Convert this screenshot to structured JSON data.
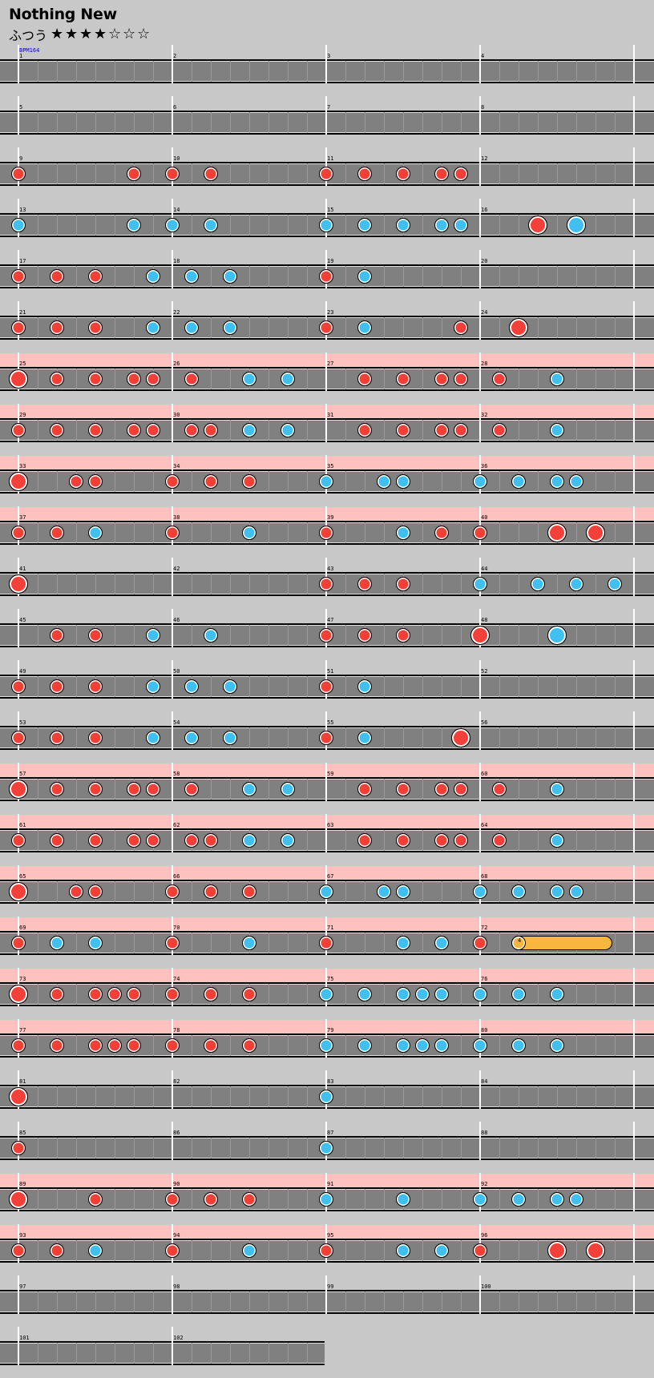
{
  "song": {
    "title": "Nothing New",
    "difficulty": "ふつう",
    "stars_filled": 4,
    "stars_total": 7,
    "star_filled_glyph": "★",
    "star_empty_glyph": "☆"
  },
  "bpm_label": "BPM164",
  "beats_per_measure": 8,
  "colors": {
    "background": "#c8c8c8",
    "lane": "#808080",
    "gogo": "#ffc0c0",
    "don": "#f5403a",
    "ka": "#40c0f0",
    "roll": "#f7b63d"
  },
  "rows": [
    {
      "measures": [
        1,
        2,
        3,
        4
      ],
      "gogo": false,
      "notes": []
    },
    {
      "measures": [
        5,
        6,
        7,
        8
      ],
      "gogo": false,
      "notes": []
    },
    {
      "measures": [
        9,
        10,
        11,
        12
      ],
      "gogo": false,
      "notes": [
        [
          0,
          "r",
          0
        ],
        [
          6,
          "r",
          0
        ],
        [
          8,
          "r",
          0
        ],
        [
          10,
          "r",
          0
        ],
        [
          16,
          "r",
          0
        ],
        [
          18,
          "r",
          0
        ],
        [
          20,
          "r",
          0
        ],
        [
          22,
          "r",
          0
        ],
        [
          23,
          "r",
          0
        ]
      ]
    },
    {
      "measures": [
        13,
        14,
        15,
        16
      ],
      "gogo": false,
      "notes": [
        [
          0,
          "b",
          0
        ],
        [
          6,
          "b",
          0
        ],
        [
          8,
          "b",
          0
        ],
        [
          10,
          "b",
          0
        ],
        [
          16,
          "b",
          0
        ],
        [
          18,
          "b",
          0
        ],
        [
          20,
          "b",
          0
        ],
        [
          22,
          "b",
          0
        ],
        [
          23,
          "b",
          0
        ],
        [
          27,
          "r",
          1
        ],
        [
          29,
          "b",
          1
        ]
      ]
    },
    {
      "measures": [
        17,
        18,
        19,
        20
      ],
      "gogo": false,
      "notes": [
        [
          0,
          "r",
          0
        ],
        [
          2,
          "r",
          0
        ],
        [
          4,
          "r",
          0
        ],
        [
          7,
          "b",
          0
        ],
        [
          9,
          "b",
          0
        ],
        [
          11,
          "b",
          0
        ],
        [
          16,
          "r",
          0
        ],
        [
          18,
          "b",
          0
        ]
      ]
    },
    {
      "measures": [
        21,
        22,
        23,
        24
      ],
      "gogo": false,
      "notes": [
        [
          0,
          "r",
          0
        ],
        [
          2,
          "r",
          0
        ],
        [
          4,
          "r",
          0
        ],
        [
          7,
          "b",
          0
        ],
        [
          9,
          "b",
          0
        ],
        [
          11,
          "b",
          0
        ],
        [
          16,
          "r",
          0
        ],
        [
          18,
          "b",
          0
        ],
        [
          23,
          "r",
          0
        ],
        [
          26,
          "r",
          1
        ]
      ]
    },
    {
      "measures": [
        25,
        26,
        27,
        28
      ],
      "gogo": true,
      "notes": [
        [
          0,
          "r",
          1
        ],
        [
          2,
          "r",
          0
        ],
        [
          4,
          "r",
          0
        ],
        [
          6,
          "r",
          0
        ],
        [
          7,
          "r",
          0
        ],
        [
          9,
          "r",
          0
        ],
        [
          12,
          "b",
          0
        ],
        [
          14,
          "b",
          0
        ],
        [
          18,
          "r",
          0
        ],
        [
          20,
          "r",
          0
        ],
        [
          22,
          "r",
          0
        ],
        [
          23,
          "r",
          0
        ],
        [
          25,
          "r",
          0
        ],
        [
          28,
          "b",
          0
        ]
      ]
    },
    {
      "measures": [
        29,
        30,
        31,
        32
      ],
      "gogo": true,
      "notes": [
        [
          0,
          "r",
          0
        ],
        [
          2,
          "r",
          0
        ],
        [
          4,
          "r",
          0
        ],
        [
          6,
          "r",
          0
        ],
        [
          7,
          "r",
          0
        ],
        [
          9,
          "r",
          0
        ],
        [
          10,
          "r",
          0
        ],
        [
          12,
          "b",
          0
        ],
        [
          14,
          "b",
          0
        ],
        [
          18,
          "r",
          0
        ],
        [
          20,
          "r",
          0
        ],
        [
          22,
          "r",
          0
        ],
        [
          23,
          "r",
          0
        ],
        [
          25,
          "r",
          0
        ],
        [
          28,
          "b",
          0
        ]
      ]
    },
    {
      "measures": [
        33,
        34,
        35,
        36
      ],
      "gogo": true,
      "notes": [
        [
          0,
          "r",
          1
        ],
        [
          3,
          "r",
          0
        ],
        [
          4,
          "r",
          0
        ],
        [
          8,
          "r",
          0
        ],
        [
          10,
          "r",
          0
        ],
        [
          12,
          "r",
          0
        ],
        [
          16,
          "b",
          0
        ],
        [
          19,
          "b",
          0
        ],
        [
          20,
          "b",
          0
        ],
        [
          24,
          "b",
          0
        ],
        [
          26,
          "b",
          0
        ],
        [
          28,
          "b",
          0
        ],
        [
          29,
          "b",
          0
        ]
      ]
    },
    {
      "measures": [
        37,
        38,
        39,
        40
      ],
      "gogo": true,
      "notes": [
        [
          0,
          "r",
          0
        ],
        [
          2,
          "r",
          0
        ],
        [
          4,
          "b",
          0
        ],
        [
          8,
          "r",
          0
        ],
        [
          12,
          "b",
          0
        ],
        [
          16,
          "r",
          0
        ],
        [
          20,
          "b",
          0
        ],
        [
          22,
          "r",
          0
        ],
        [
          24,
          "r",
          0
        ],
        [
          28,
          "r",
          1
        ],
        [
          30,
          "r",
          1
        ]
      ]
    },
    {
      "measures": [
        41,
        42,
        43,
        44
      ],
      "gogo": false,
      "notes": [
        [
          0,
          "r",
          1
        ],
        [
          16,
          "r",
          0
        ],
        [
          18,
          "r",
          0
        ],
        [
          20,
          "r",
          0
        ],
        [
          24,
          "b",
          0
        ],
        [
          27,
          "b",
          0
        ],
        [
          29,
          "b",
          0
        ],
        [
          31,
          "b",
          0
        ]
      ]
    },
    {
      "measures": [
        45,
        46,
        47,
        48
      ],
      "gogo": false,
      "notes": [
        [
          2,
          "r",
          0
        ],
        [
          4,
          "r",
          0
        ],
        [
          7,
          "b",
          0
        ],
        [
          10,
          "b",
          0
        ],
        [
          16,
          "r",
          0
        ],
        [
          18,
          "r",
          0
        ],
        [
          20,
          "r",
          0
        ],
        [
          24,
          "r",
          1
        ],
        [
          28,
          "b",
          1
        ]
      ]
    },
    {
      "measures": [
        49,
        50,
        51,
        52
      ],
      "gogo": false,
      "notes": [
        [
          0,
          "r",
          0
        ],
        [
          2,
          "r",
          0
        ],
        [
          4,
          "r",
          0
        ],
        [
          7,
          "b",
          0
        ],
        [
          9,
          "b",
          0
        ],
        [
          11,
          "b",
          0
        ],
        [
          16,
          "r",
          0
        ],
        [
          18,
          "b",
          0
        ]
      ]
    },
    {
      "measures": [
        53,
        54,
        55,
        56
      ],
      "gogo": false,
      "notes": [
        [
          0,
          "r",
          0
        ],
        [
          2,
          "r",
          0
        ],
        [
          4,
          "r",
          0
        ],
        [
          7,
          "b",
          0
        ],
        [
          9,
          "b",
          0
        ],
        [
          11,
          "b",
          0
        ],
        [
          16,
          "r",
          0
        ],
        [
          18,
          "b",
          0
        ],
        [
          23,
          "r",
          1
        ]
      ]
    },
    {
      "measures": [
        57,
        58,
        59,
        60
      ],
      "gogo": true,
      "notes": [
        [
          0,
          "r",
          1
        ],
        [
          2,
          "r",
          0
        ],
        [
          4,
          "r",
          0
        ],
        [
          6,
          "r",
          0
        ],
        [
          7,
          "r",
          0
        ],
        [
          9,
          "r",
          0
        ],
        [
          12,
          "b",
          0
        ],
        [
          14,
          "b",
          0
        ],
        [
          18,
          "r",
          0
        ],
        [
          20,
          "r",
          0
        ],
        [
          22,
          "r",
          0
        ],
        [
          23,
          "r",
          0
        ],
        [
          25,
          "r",
          0
        ],
        [
          28,
          "b",
          0
        ]
      ]
    },
    {
      "measures": [
        61,
        62,
        63,
        64
      ],
      "gogo": true,
      "notes": [
        [
          0,
          "r",
          0
        ],
        [
          2,
          "r",
          0
        ],
        [
          4,
          "r",
          0
        ],
        [
          6,
          "r",
          0
        ],
        [
          7,
          "r",
          0
        ],
        [
          9,
          "r",
          0
        ],
        [
          10,
          "r",
          0
        ],
        [
          12,
          "b",
          0
        ],
        [
          14,
          "b",
          0
        ],
        [
          18,
          "r",
          0
        ],
        [
          20,
          "r",
          0
        ],
        [
          22,
          "r",
          0
        ],
        [
          23,
          "r",
          0
        ],
        [
          25,
          "r",
          0
        ],
        [
          28,
          "b",
          0
        ]
      ]
    },
    {
      "measures": [
        65,
        66,
        67,
        68
      ],
      "gogo": true,
      "notes": [
        [
          0,
          "r",
          1
        ],
        [
          3,
          "r",
          0
        ],
        [
          4,
          "r",
          0
        ],
        [
          8,
          "r",
          0
        ],
        [
          10,
          "r",
          0
        ],
        [
          12,
          "r",
          0
        ],
        [
          16,
          "b",
          0
        ],
        [
          19,
          "b",
          0
        ],
        [
          20,
          "b",
          0
        ],
        [
          24,
          "b",
          0
        ],
        [
          26,
          "b",
          0
        ],
        [
          28,
          "b",
          0
        ],
        [
          29,
          "b",
          0
        ]
      ]
    },
    {
      "measures": [
        69,
        70,
        71,
        72
      ],
      "gogo": true,
      "roll": {
        "start": 26,
        "end": 30.5,
        "count": "4"
      },
      "notes": [
        [
          0,
          "r",
          0
        ],
        [
          2,
          "b",
          0
        ],
        [
          4,
          "b",
          0
        ],
        [
          8,
          "r",
          0
        ],
        [
          12,
          "b",
          0
        ],
        [
          16,
          "r",
          0
        ],
        [
          20,
          "b",
          0
        ],
        [
          22,
          "b",
          0
        ],
        [
          24,
          "r",
          0
        ]
      ]
    },
    {
      "measures": [
        73,
        74,
        75,
        76
      ],
      "gogo": true,
      "notes": [
        [
          0,
          "r",
          1
        ],
        [
          2,
          "r",
          0
        ],
        [
          4,
          "r",
          0
        ],
        [
          5,
          "r",
          0
        ],
        [
          6,
          "r",
          0
        ],
        [
          8,
          "r",
          0
        ],
        [
          10,
          "r",
          0
        ],
        [
          12,
          "r",
          0
        ],
        [
          16,
          "b",
          0
        ],
        [
          18,
          "b",
          0
        ],
        [
          20,
          "b",
          0
        ],
        [
          21,
          "b",
          0
        ],
        [
          22,
          "b",
          0
        ],
        [
          24,
          "b",
          0
        ],
        [
          26,
          "b",
          0
        ],
        [
          28,
          "b",
          0
        ]
      ]
    },
    {
      "measures": [
        77,
        78,
        79,
        80
      ],
      "gogo": true,
      "notes": [
        [
          0,
          "r",
          0
        ],
        [
          2,
          "r",
          0
        ],
        [
          4,
          "r",
          0
        ],
        [
          5,
          "r",
          0
        ],
        [
          6,
          "r",
          0
        ],
        [
          8,
          "r",
          0
        ],
        [
          10,
          "r",
          0
        ],
        [
          12,
          "r",
          0
        ],
        [
          16,
          "b",
          0
        ],
        [
          18,
          "b",
          0
        ],
        [
          20,
          "b",
          0
        ],
        [
          21,
          "b",
          0
        ],
        [
          22,
          "b",
          0
        ],
        [
          24,
          "b",
          0
        ],
        [
          26,
          "b",
          0
        ],
        [
          28,
          "b",
          0
        ]
      ]
    },
    {
      "measures": [
        81,
        82,
        83,
        84
      ],
      "gogo": false,
      "notes": [
        [
          0,
          "r",
          1
        ],
        [
          16,
          "b",
          0
        ]
      ]
    },
    {
      "measures": [
        85,
        86,
        87,
        88
      ],
      "gogo": false,
      "notes": [
        [
          0,
          "r",
          0
        ],
        [
          16,
          "b",
          0
        ]
      ]
    },
    {
      "measures": [
        89,
        90,
        91,
        92
      ],
      "gogo": true,
      "notes": [
        [
          0,
          "r",
          1
        ],
        [
          4,
          "r",
          0
        ],
        [
          8,
          "r",
          0
        ],
        [
          10,
          "r",
          0
        ],
        [
          12,
          "r",
          0
        ],
        [
          16,
          "b",
          0
        ],
        [
          20,
          "b",
          0
        ],
        [
          24,
          "b",
          0
        ],
        [
          26,
          "b",
          0
        ],
        [
          28,
          "b",
          0
        ],
        [
          29,
          "b",
          0
        ]
      ]
    },
    {
      "measures": [
        93,
        94,
        95,
        96
      ],
      "gogo": true,
      "notes": [
        [
          0,
          "r",
          0
        ],
        [
          2,
          "r",
          0
        ],
        [
          4,
          "b",
          0
        ],
        [
          8,
          "r",
          0
        ],
        [
          12,
          "b",
          0
        ],
        [
          16,
          "r",
          0
        ],
        [
          20,
          "b",
          0
        ],
        [
          22,
          "b",
          0
        ],
        [
          24,
          "r",
          0
        ],
        [
          28,
          "r",
          1
        ],
        [
          30,
          "r",
          1
        ]
      ]
    },
    {
      "measures": [
        97,
        98,
        99,
        100
      ],
      "gogo": false,
      "notes": []
    },
    {
      "measures": [
        101,
        102
      ],
      "gogo": false,
      "notes": []
    }
  ]
}
